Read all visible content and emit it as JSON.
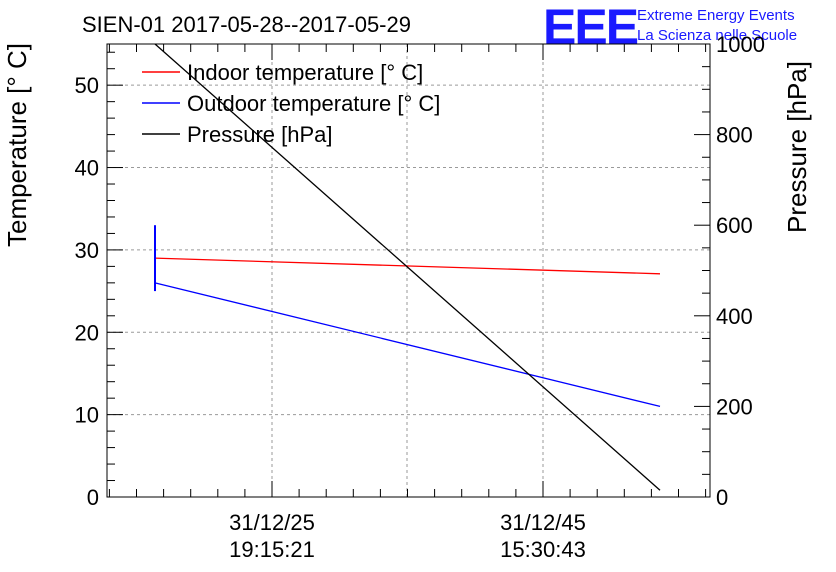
{
  "chart_data": {
    "type": "line",
    "title": "SIEN-01 2017-05-28--2017-05-29",
    "logo": {
      "text": "EEE",
      "line1": "Extreme Energy Events",
      "line2": "La Scienza nelle Scuole",
      "color": "#1a1aff"
    },
    "ylabel": "Temperature [° C]",
    "y2label": "Pressure [hPa]",
    "ylim": [
      0,
      55
    ],
    "y2lim": [
      0,
      1000
    ],
    "y_ticks": [
      "0",
      "10",
      "20",
      "30",
      "40",
      "50"
    ],
    "y2_ticks": [
      "0",
      "200",
      "400",
      "600",
      "800",
      "1000"
    ],
    "x_ticks": [
      {
        "line1": "31/12/25",
        "line2": "19:15:21"
      },
      {
        "line1": "31/12/45",
        "line2": "15:30:43"
      }
    ],
    "grid": true,
    "legend_position": "top-left",
    "series": [
      {
        "name": "Indoor temperature [° C]",
        "color": "#ff0000",
        "axis": "left",
        "values": [
          29.0,
          27.1
        ],
        "error_bar": null
      },
      {
        "name": "Outdoor temperature [° C]",
        "color": "#0000ff",
        "axis": "left",
        "values": [
          26.0,
          11.0
        ],
        "error_bar": [
          25.0,
          33.0
        ]
      },
      {
        "name": "Pressure [hPa]",
        "color": "#000000",
        "axis": "right",
        "values": [
          1000,
          15
        ],
        "error_bar": null
      }
    ]
  }
}
